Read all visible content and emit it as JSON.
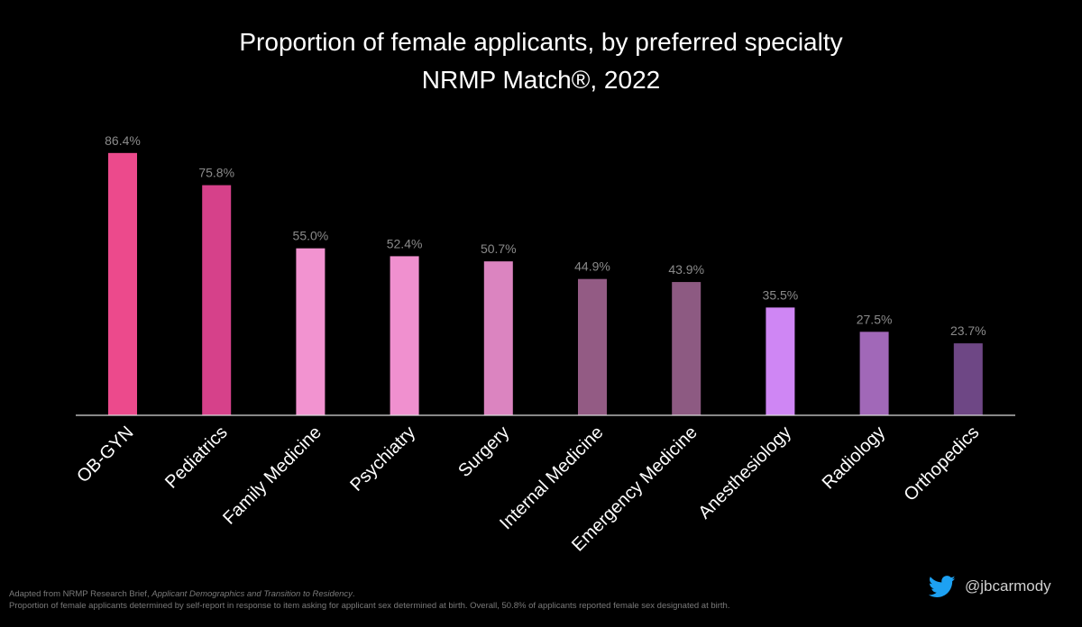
{
  "chart_data": {
    "type": "bar",
    "title": "Proportion of female applicants, by preferred specialty",
    "subtitle": "NRMP Match®, 2022",
    "categories": [
      "OB-GYN",
      "Pediatrics",
      "Family Medicine",
      "Psychiatry",
      "Surgery",
      "Internal Medicine",
      "Emergency Medicine",
      "Anesthesiology",
      "Radiology",
      "Orthopedics"
    ],
    "values": [
      86.4,
      75.8,
      55.0,
      52.4,
      50.7,
      44.9,
      43.9,
      35.5,
      27.5,
      23.7
    ],
    "value_labels": [
      "86.4%",
      "75.8%",
      "55.0%",
      "52.4%",
      "50.7%",
      "44.9%",
      "43.9%",
      "35.5%",
      "27.5%",
      "23.7%"
    ],
    "colors": [
      "#ec4a8c",
      "#d6418a",
      "#f293d0",
      "#f090cf",
      "#db84c0",
      "#935b84",
      "#8d5a82",
      "#cf86f4",
      "#a168b8",
      "#6e4785"
    ],
    "xlabel": "",
    "ylabel": "",
    "ylim": [
      0,
      100
    ],
    "grid": false,
    "legend": "none"
  },
  "footnote": {
    "line1_prefix": "Adapted from NRMP Research Brief, ",
    "line1_source": "Applicant Demographics and Transition to Residency",
    "line1_suffix": ".",
    "line2": "Proportion of female applicants determined by self-report in response to item asking for applicant sex determined at birth. Overall, 50.8% of applicants reported female sex designated at birth."
  },
  "attribution": {
    "icon": "twitter-bird-icon",
    "icon_color": "#1da1f2",
    "handle": "@jbcarmody"
  }
}
